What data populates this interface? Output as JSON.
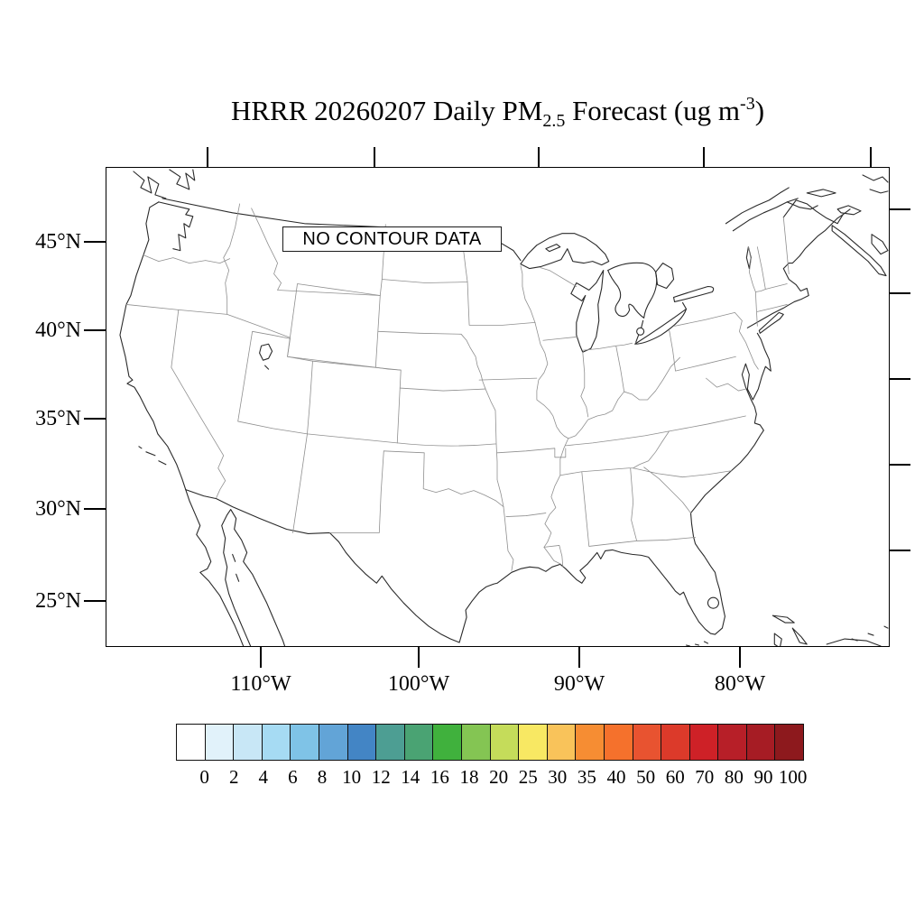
{
  "title": {
    "prefix": "HRRR 20260207 Daily PM",
    "subscript": "2.5",
    "middle": " Forecast (ug m",
    "superscript": "-3",
    "suffix": ")"
  },
  "map": {
    "no_data_label": "NO CONTOUR DATA",
    "lat_axis": {
      "labels": [
        "45°N",
        "40°N",
        "35°N",
        "30°N",
        "25°N"
      ]
    },
    "lon_axis": {
      "labels": [
        "110°W",
        "100°W",
        "90°W",
        "80°W"
      ]
    }
  },
  "colorbar": {
    "tick_labels": [
      "0",
      "2",
      "4",
      "6",
      "8",
      "10",
      "12",
      "14",
      "16",
      "18",
      "20",
      "25",
      "30",
      "35",
      "40",
      "50",
      "60",
      "70",
      "80",
      "90",
      "100"
    ],
    "colors": [
      "#FFFFFF",
      "#E1F2FA",
      "#C8E7F6",
      "#A6DBF3",
      "#7FC3E7",
      "#62A4D7",
      "#4385C5",
      "#4D9E93",
      "#4AA373",
      "#40B13D",
      "#84C553",
      "#C5DC5A",
      "#F8E863",
      "#F9C35A",
      "#F68D33",
      "#F5712C",
      "#E85330",
      "#DC3A2A",
      "#CE2127",
      "#B71F28",
      "#A61C24",
      "#8D191D"
    ]
  },
  "chart_data": {
    "type": "heatmap",
    "title": "HRRR 20260207 Daily PM2.5 Forecast (ug m-3)",
    "region": "Continental United States",
    "status": "NO CONTOUR DATA",
    "lat_ticks_deg_n": [
      45,
      40,
      35,
      30,
      25
    ],
    "lon_ticks_deg_w": [
      110,
      100,
      90,
      80
    ],
    "colorbar_levels": [
      0,
      2,
      4,
      6,
      8,
      10,
      12,
      14,
      16,
      18,
      20,
      25,
      30,
      35,
      40,
      50,
      60,
      70,
      80,
      90,
      100
    ],
    "legend_position": "bottom"
  }
}
